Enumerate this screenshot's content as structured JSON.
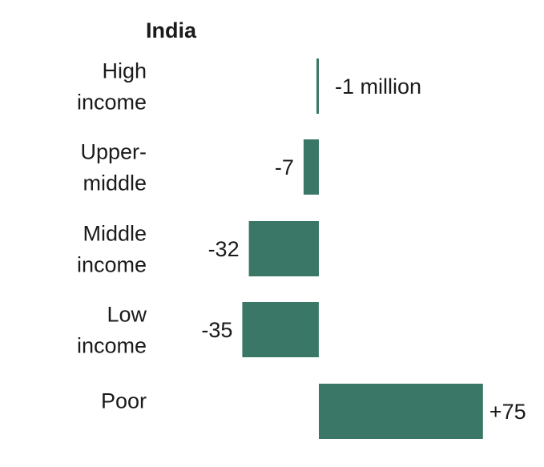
{
  "chart_data": {
    "type": "bar",
    "orientation": "horizontal",
    "title": "India",
    "categories": [
      [
        "High",
        "income"
      ],
      [
        "Upper-",
        "middle"
      ],
      [
        "Middle",
        "income"
      ],
      [
        "Low",
        "income"
      ],
      [
        "Poor"
      ]
    ],
    "values": [
      -1,
      -7,
      -32,
      -35,
      75
    ],
    "value_labels": [
      "-1 million",
      "-7",
      "-32",
      "-35",
      "+75"
    ],
    "unit": "million",
    "bar_color": "#3a7766",
    "xlim": [
      -40,
      80
    ]
  }
}
